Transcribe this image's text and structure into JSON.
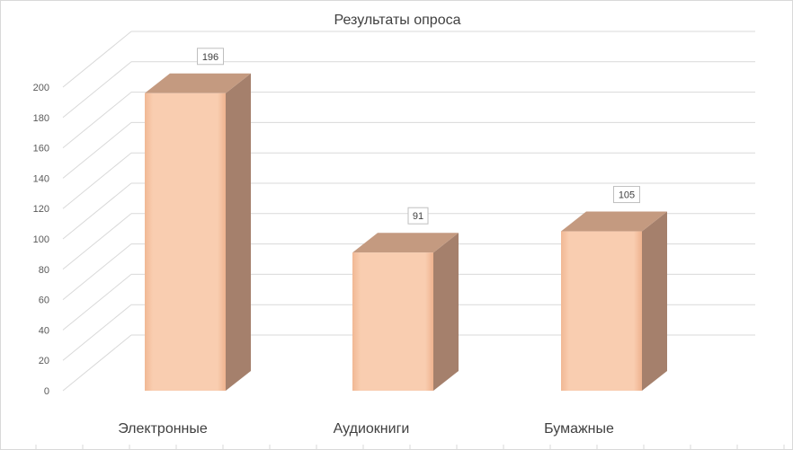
{
  "chart_data": {
    "type": "bar",
    "title": "Результаты опроса",
    "categories": [
      "Электронные",
      "Аудиокниги",
      "Бумажные"
    ],
    "values": [
      196,
      91,
      105
    ],
    "data_labels": [
      "196",
      "91",
      "105"
    ],
    "yticks": [
      "0",
      "20",
      "40",
      "60",
      "80",
      "100",
      "120",
      "140",
      "160",
      "180",
      "200"
    ],
    "ylim": [
      0,
      200
    ],
    "grid": true,
    "legend": "none",
    "style": "3d-column",
    "colors": {
      "front": "#f8c9aa",
      "top": "#c49a80",
      "side": "#a5806c"
    }
  }
}
